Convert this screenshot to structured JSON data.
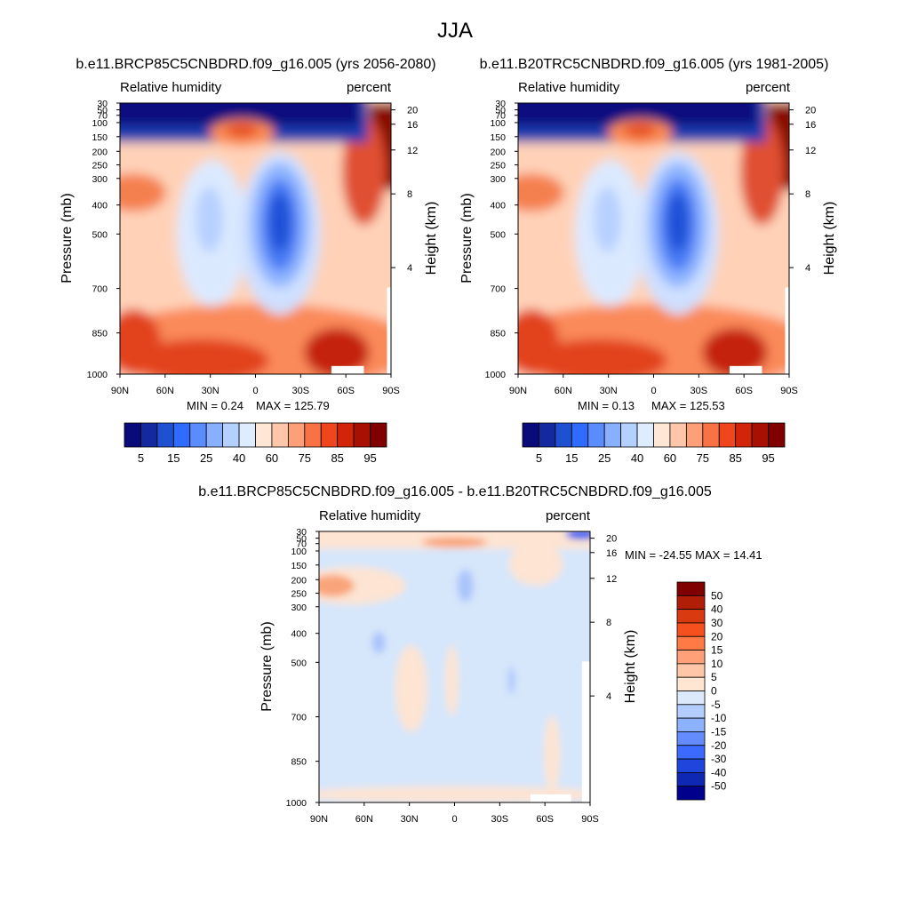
{
  "figure": {
    "title": "JJA"
  },
  "chart_data": [
    {
      "type": "heatmap",
      "title": "b.e11.BRCP85C5CNBDRD.f09_g16.005 (yrs 2056-2080)",
      "left_label": "Relative humidity",
      "right_label": "percent",
      "ylabel": "Pressure (mb)",
      "ylabel_right": "Height (km)",
      "x_ticks": [
        "90N",
        "60N",
        "30N",
        "0",
        "30S",
        "60S",
        "90S"
      ],
      "y_ticks": [
        "30",
        "50",
        "70",
        "100",
        "150",
        "200",
        "250",
        "300",
        "400",
        "500",
        "700",
        "850",
        "1000"
      ],
      "height_ticks": [
        "20",
        "16",
        "12",
        "8",
        "4"
      ],
      "min_label": "MIN =   0.24",
      "max_label": "MAX = 125.79",
      "stats": {
        "min": 0.24,
        "max": 125.79
      },
      "colorbar_orientation": "horizontal",
      "colorbar_labels": [
        "5",
        "15",
        "25",
        "40",
        "60",
        "75",
        "85",
        "95"
      ],
      "colorbar_colors": [
        "#0a0a7a",
        "#1428a0",
        "#1e50d2",
        "#2f6bff",
        "#5a8cff",
        "#87b0ff",
        "#b4d0ff",
        "#deecff",
        "#ffe6d5",
        "#ffc6aa",
        "#fda07a",
        "#f97245",
        "#f0461e",
        "#d22508",
        "#a81002",
        "#800000"
      ]
    },
    {
      "type": "heatmap",
      "title": "b.e11.B20TRC5CNBDRD.f09_g16.005 (yrs 1981-2005)",
      "left_label": "Relative humidity",
      "right_label": "percent",
      "ylabel": "Pressure (mb)",
      "ylabel_right": "Height (km)",
      "x_ticks": [
        "90N",
        "60N",
        "30N",
        "0",
        "30S",
        "60S",
        "90S"
      ],
      "y_ticks": [
        "30",
        "50",
        "70",
        "100",
        "150",
        "200",
        "250",
        "300",
        "400",
        "500",
        "700",
        "850",
        "1000"
      ],
      "height_ticks": [
        "20",
        "16",
        "12",
        "8",
        "4"
      ],
      "min_label": "MIN =   0.13",
      "max_label": "MAX = 125.53",
      "stats": {
        "min": 0.13,
        "max": 125.53
      },
      "colorbar_orientation": "horizontal",
      "colorbar_labels": [
        "5",
        "15",
        "25",
        "40",
        "60",
        "75",
        "85",
        "95"
      ],
      "colorbar_colors": [
        "#0a0a7a",
        "#1428a0",
        "#1e50d2",
        "#2f6bff",
        "#5a8cff",
        "#87b0ff",
        "#b4d0ff",
        "#deecff",
        "#ffe6d5",
        "#ffc6aa",
        "#fda07a",
        "#f97245",
        "#f0461e",
        "#d22508",
        "#a81002",
        "#800000"
      ]
    },
    {
      "type": "heatmap",
      "title": "b.e11.BRCP85C5CNBDRD.f09_g16.005 - b.e11.B20TRC5CNBDRD.f09_g16.005",
      "left_label": "Relative humidity",
      "right_label": "percent",
      "ylabel": "Pressure (mb)",
      "ylabel_right": "Height (km)",
      "x_ticks": [
        "90N",
        "60N",
        "30N",
        "0",
        "30S",
        "60S",
        "90S"
      ],
      "y_ticks": [
        "30",
        "50",
        "70",
        "100",
        "150",
        "200",
        "250",
        "300",
        "400",
        "500",
        "700",
        "850",
        "1000"
      ],
      "height_ticks": [
        "20",
        "16",
        "12",
        "8",
        "4"
      ],
      "minmax_label": "MIN = -24.55  MAX =  14.41",
      "stats": {
        "min": -24.55,
        "max": 14.41
      },
      "colorbar_orientation": "vertical",
      "colorbar_labels": [
        "50",
        "40",
        "30",
        "20",
        "15",
        "10",
        "5",
        "0",
        "-5",
        "-10",
        "-15",
        "-20",
        "-30",
        "-40",
        "-50"
      ],
      "colorbar_colors": [
        "#800000",
        "#b01e08",
        "#d93a10",
        "#f5501e",
        "#ff7a45",
        "#ffa078",
        "#ffc7a8",
        "#ffe6d2",
        "#dce9fa",
        "#b4cdff",
        "#8cb2ff",
        "#648cff",
        "#3c6aff",
        "#1e46dc",
        "#0f28b4",
        "#00008c"
      ]
    }
  ]
}
